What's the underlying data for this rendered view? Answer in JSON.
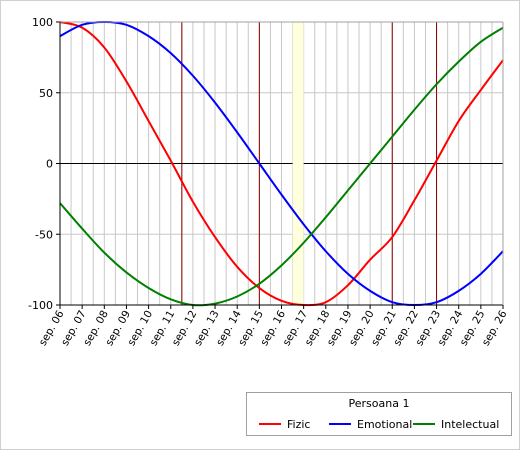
{
  "chart_data": {
    "type": "line",
    "x_categories": [
      "sep. 06",
      "sep. 07",
      "sep. 08",
      "sep. 09",
      "sep. 10",
      "sep. 11",
      "sep. 12",
      "sep. 13",
      "sep. 14",
      "sep. 15",
      "sep. 16",
      "sep. 17",
      "sep. 18",
      "sep. 19",
      "sep. 20",
      "sep. 21",
      "sep. 22",
      "sep. 23",
      "sep. 24",
      "sep. 25",
      "sep. 26"
    ],
    "ylim": [
      -100,
      100
    ],
    "y_ticks": [
      "100",
      "50",
      "0",
      "-50",
      "-100"
    ],
    "grid": true,
    "highlight_band": {
      "from": 10.5,
      "to": 11.0,
      "color": "#ffffdd"
    },
    "vertical_markers": [
      5.5,
      9.0,
      15.0,
      17.0
    ],
    "marker_color": "#8b0000",
    "legend": {
      "title": "Persoana 1",
      "position": "bottom-right"
    },
    "series": [
      {
        "name": "Fizic",
        "color": "#ff0000",
        "x": [
          0,
          1,
          2,
          3,
          4,
          5,
          6,
          7,
          8,
          9,
          10,
          11,
          12,
          13,
          14,
          15,
          16,
          17,
          18,
          19,
          20
        ],
        "y": [
          100,
          96,
          82,
          58,
          30,
          2,
          -27,
          -52,
          -73,
          -88,
          -97,
          -100,
          -98,
          -86,
          -68,
          -52,
          -26,
          2,
          30,
          52,
          73
        ]
      },
      {
        "name": "Emotional",
        "color": "#0000ff",
        "x": [
          0,
          1,
          2,
          3,
          4,
          5,
          6,
          7,
          8,
          9,
          10,
          11,
          12,
          13,
          14,
          15,
          16,
          17,
          18,
          19,
          20
        ],
        "y": [
          90,
          98,
          100,
          98,
          90,
          78,
          62,
          43,
          22,
          0,
          -22,
          -43,
          -62,
          -78,
          -90,
          -98,
          -100,
          -98,
          -90,
          -78,
          -62
        ]
      },
      {
        "name": "Intelectual",
        "color": "#008000",
        "x": [
          0,
          1,
          2,
          3,
          4,
          5,
          6,
          7,
          8,
          9,
          10,
          11,
          12,
          13,
          14,
          15,
          16,
          17,
          18,
          19,
          20
        ],
        "y": [
          -28,
          -46,
          -63,
          -77,
          -88,
          -96,
          -100,
          -99,
          -94,
          -85,
          -72,
          -56,
          -38,
          -19,
          0,
          19,
          38,
          56,
          72,
          86,
          96
        ]
      }
    ]
  }
}
